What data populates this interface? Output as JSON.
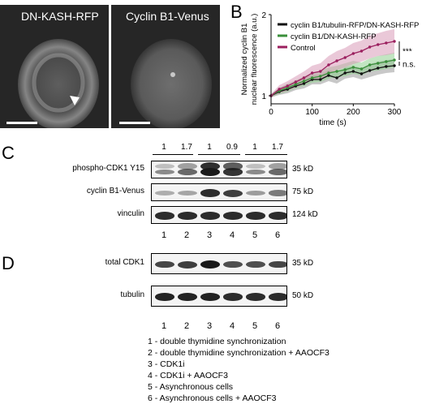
{
  "panels": {
    "a": "A",
    "b": "B",
    "c": "C",
    "d": "D"
  },
  "panel_a": {
    "image1_title": "DN-KASH-RFP",
    "image2_title": "Cyclin B1-Venus"
  },
  "chart_data": {
    "type": "line",
    "xlabel": "time (s)",
    "ylabel_line1": "Normalized cyclin B1",
    "ylabel_line2": "nuclear fluorescence (a.u.)",
    "xlim": [
      0,
      300
    ],
    "ylim": [
      0.9,
      2
    ],
    "x_ticks": [
      0,
      100,
      200,
      300
    ],
    "y_ticks": [
      1,
      2
    ],
    "x": [
      0,
      20,
      40,
      60,
      80,
      100,
      120,
      140,
      160,
      180,
      200,
      220,
      240,
      260,
      280,
      300
    ],
    "series": [
      {
        "name": "cyclin B1/tubulin-RFP/DN-KASH-RFP",
        "color": "#111111",
        "band_color": "#9a9a9a",
        "values": [
          1.0,
          1.05,
          1.08,
          1.12,
          1.15,
          1.2,
          1.2,
          1.25,
          1.22,
          1.28,
          1.3,
          1.27,
          1.31,
          1.34,
          1.36,
          1.37
        ],
        "err": [
          0.02,
          0.04,
          0.05,
          0.05,
          0.06,
          0.06,
          0.06,
          0.07,
          0.07,
          0.07,
          0.07,
          0.07,
          0.08,
          0.08,
          0.08,
          0.08
        ]
      },
      {
        "name": "cyclin B1/DN-KASH-RFP",
        "color": "#3a8f3a",
        "band_color": "#8fd08f",
        "values": [
          1.0,
          1.06,
          1.1,
          1.14,
          1.18,
          1.22,
          1.24,
          1.28,
          1.3,
          1.32,
          1.35,
          1.33,
          1.38,
          1.4,
          1.42,
          1.44
        ],
        "err": [
          0.02,
          0.04,
          0.05,
          0.05,
          0.06,
          0.06,
          0.07,
          0.07,
          0.07,
          0.08,
          0.08,
          0.08,
          0.08,
          0.09,
          0.09,
          0.09
        ]
      },
      {
        "name": "Control",
        "color": "#9b1f5e",
        "band_color": "#d99ab8",
        "values": [
          1.0,
          1.08,
          1.12,
          1.17,
          1.22,
          1.28,
          1.3,
          1.38,
          1.43,
          1.47,
          1.52,
          1.55,
          1.6,
          1.63,
          1.65,
          1.67
        ],
        "err": [
          0.02,
          0.05,
          0.06,
          0.07,
          0.08,
          0.09,
          0.1,
          0.11,
          0.12,
          0.12,
          0.13,
          0.13,
          0.14,
          0.14,
          0.15,
          0.15
        ]
      }
    ],
    "significance": [
      {
        "label": "***"
      },
      {
        "label": "n.s."
      }
    ],
    "legend_position": "top"
  },
  "panel_c": {
    "ratios": [
      "1",
      "1.7",
      "1",
      "0.9",
      "1",
      "1.7"
    ],
    "blots": [
      {
        "label": "phospho-CDK1 Y15",
        "kd": "35 kD",
        "intensity": [
          0.35,
          0.55,
          1.0,
          0.85,
          0.35,
          0.55
        ],
        "double": true
      },
      {
        "label": "cyclin B1-Venus",
        "kd": "75 kD",
        "intensity": [
          0.15,
          0.2,
          0.9,
          0.8,
          0.25,
          0.45
        ],
        "double": false
      },
      {
        "label": "vinculin",
        "kd": "124 kD",
        "intensity": [
          0.9,
          0.9,
          0.9,
          0.9,
          0.9,
          0.9
        ],
        "double": false
      }
    ],
    "lanes": [
      "1",
      "2",
      "3",
      "4",
      "5",
      "6"
    ]
  },
  "panel_d": {
    "blots": [
      {
        "label": "total CDK1",
        "kd": "35 kD",
        "intensity": [
          0.75,
          0.8,
          1.0,
          0.7,
          0.7,
          0.75
        ],
        "double": false
      },
      {
        "label": "tubulin",
        "kd": "50 kD",
        "intensity": [
          0.95,
          0.95,
          0.95,
          0.9,
          0.9,
          0.9
        ],
        "double": false
      }
    ],
    "lanes": [
      "1",
      "2",
      "3",
      "4",
      "5",
      "6"
    ]
  },
  "conditions": [
    "1 - double thymidine synchronization",
    "2 - double thymidine synchronization + AAOCF3",
    "3 - CDK1i",
    "4 - CDK1i + AAOCF3",
    "5 - Asynchronous cells",
    "6 - Asynchronous cells + AAOCF3"
  ]
}
